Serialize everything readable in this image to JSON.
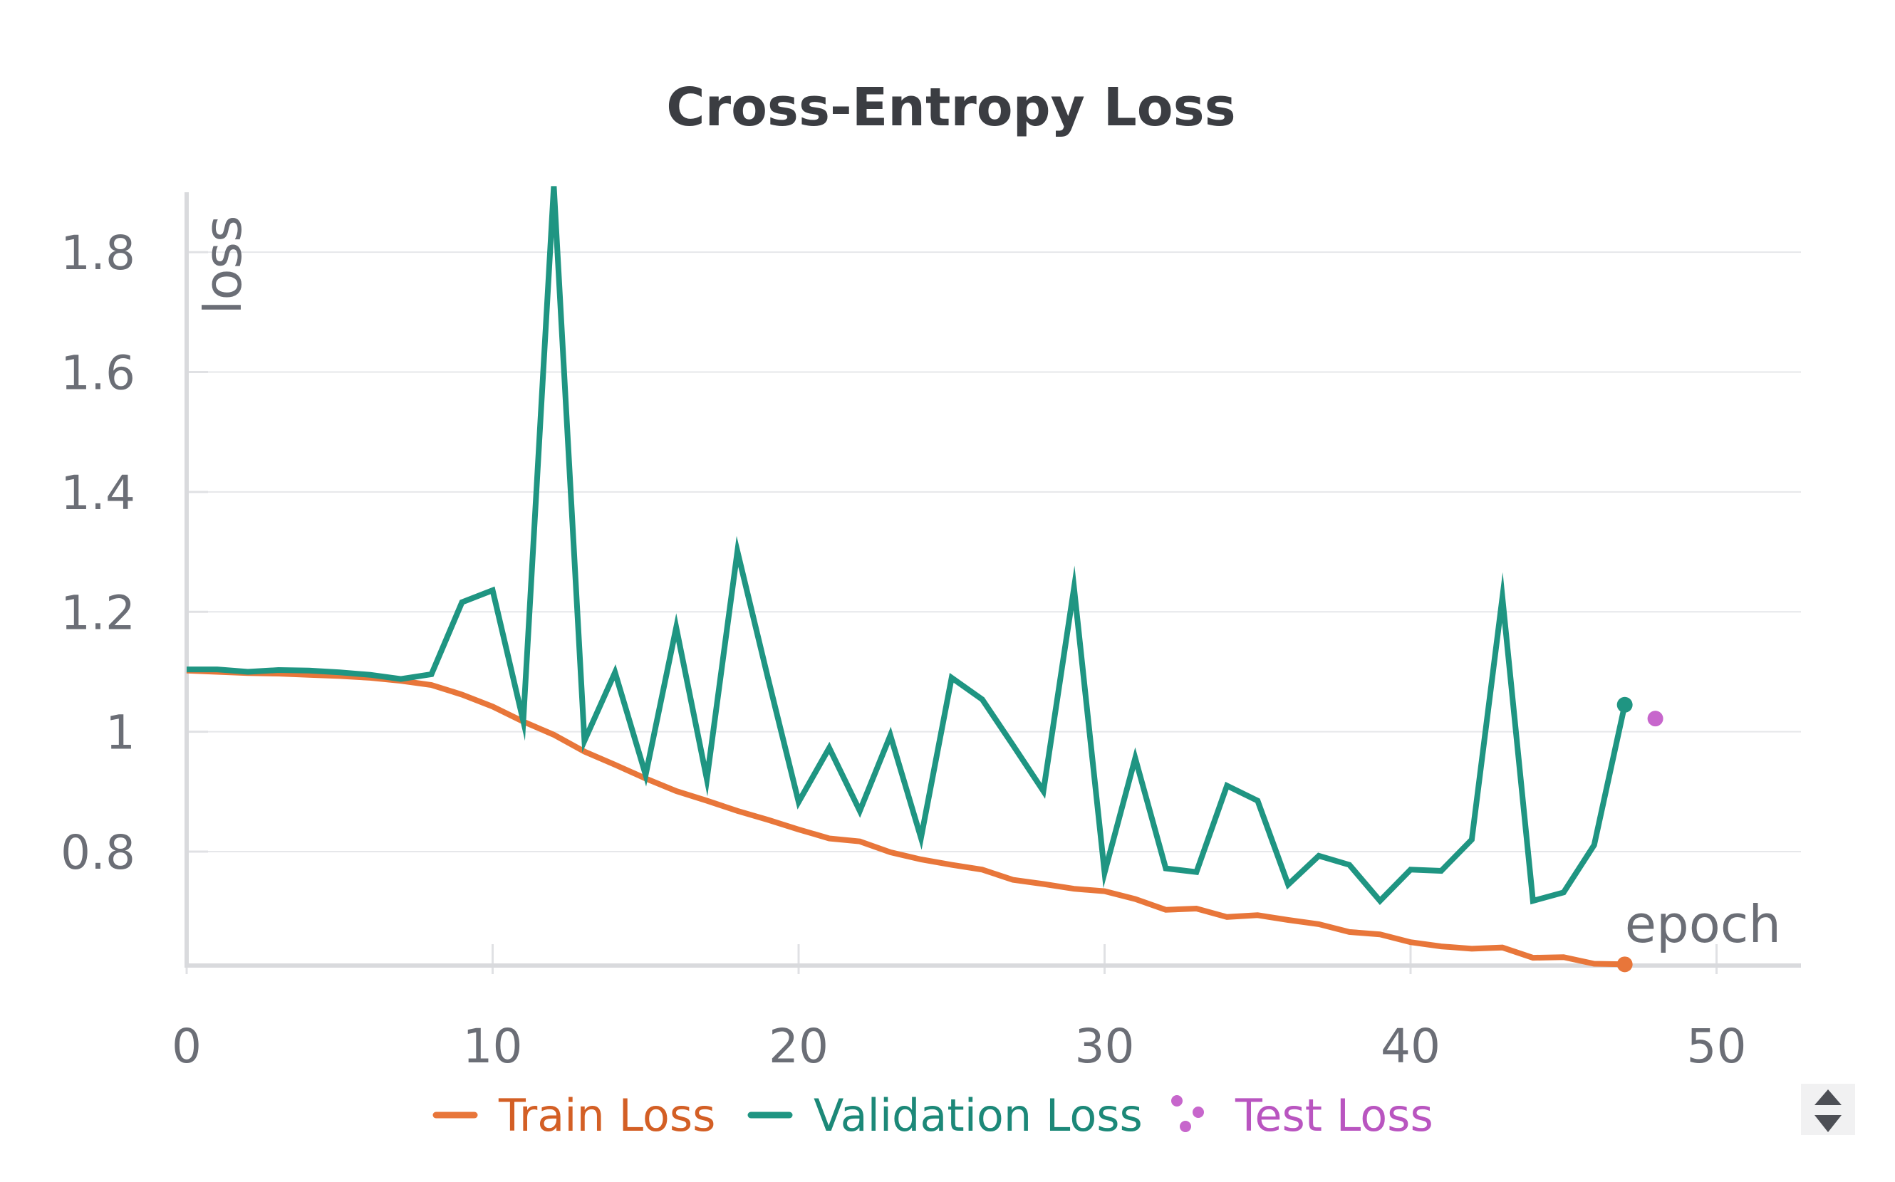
{
  "chart_data": {
    "type": "line",
    "title": "Cross-Entropy Loss",
    "xlabel": "epoch",
    "ylabel": "loss",
    "xlim": [
      0,
      53
    ],
    "ylim": [
      0.61,
      1.9
    ],
    "xticks": [
      0,
      10,
      20,
      30,
      40,
      50
    ],
    "yticks": [
      0.8,
      1,
      1.2,
      1.4,
      1.6,
      1.8
    ],
    "ytick_labels": [
      "0.8",
      "1",
      "1.2",
      "1.4",
      "1.6",
      "1.8"
    ],
    "grid": true,
    "legend_position": "bottom-center",
    "series": [
      {
        "name": "Train Loss",
        "kind": "line",
        "color": "#e8763a",
        "text_color": "#d35f25",
        "x": [
          0,
          1,
          2,
          3,
          4,
          5,
          6,
          7,
          8,
          9,
          10,
          11,
          12,
          13,
          14,
          15,
          16,
          17,
          18,
          19,
          20,
          21,
          22,
          23,
          24,
          25,
          26,
          27,
          28,
          29,
          30,
          31,
          32,
          33,
          34,
          35,
          36,
          37,
          38,
          39,
          40,
          41,
          42,
          43,
          44,
          45,
          46,
          47
        ],
        "y": [
          1.102,
          1.1,
          1.098,
          1.097,
          1.095,
          1.093,
          1.09,
          1.085,
          1.078,
          1.062,
          1.042,
          1.017,
          0.995,
          0.967,
          0.945,
          0.922,
          0.901,
          0.885,
          0.868,
          0.853,
          0.837,
          0.822,
          0.817,
          0.799,
          0.787,
          0.778,
          0.77,
          0.753,
          0.746,
          0.738,
          0.734,
          0.721,
          0.703,
          0.705,
          0.691,
          0.694,
          0.686,
          0.679,
          0.666,
          0.662,
          0.649,
          0.642,
          0.638,
          0.64,
          0.623,
          0.624,
          0.613,
          0.612
        ],
        "end_marker": true
      },
      {
        "name": "Validation Loss",
        "kind": "line",
        "color": "#1f9582",
        "text_color": "#1c8878",
        "x": [
          0,
          1,
          2,
          3,
          4,
          5,
          6,
          7,
          8,
          9,
          10,
          11,
          12,
          13,
          14,
          15,
          16,
          17,
          18,
          19,
          20,
          21,
          22,
          23,
          24,
          25,
          26,
          27,
          28,
          29,
          30,
          31,
          32,
          33,
          34,
          35,
          36,
          37,
          38,
          39,
          40,
          41,
          42,
          43,
          44,
          45,
          46,
          47
        ],
        "y": [
          1.104,
          1.104,
          1.1,
          1.103,
          1.102,
          1.099,
          1.095,
          1.088,
          1.096,
          1.216,
          1.236,
          1.018,
          1.91,
          0.985,
          1.099,
          0.928,
          1.174,
          0.921,
          1.301,
          1.089,
          0.883,
          0.973,
          0.868,
          0.994,
          0.823,
          1.09,
          1.054,
          0.978,
          0.901,
          1.24,
          0.765,
          0.956,
          0.772,
          0.766,
          0.91,
          0.885,
          0.745,
          0.793,
          0.778,
          0.718,
          0.77,
          0.768,
          0.82,
          1.224,
          0.718,
          0.732,
          0.811,
          1.045
        ],
        "end_marker": true
      },
      {
        "name": "Test Loss",
        "kind": "scatter",
        "color": "#c766cc",
        "text_color": "#b955c0",
        "x": [
          48
        ],
        "y": [
          1.022
        ]
      }
    ]
  }
}
